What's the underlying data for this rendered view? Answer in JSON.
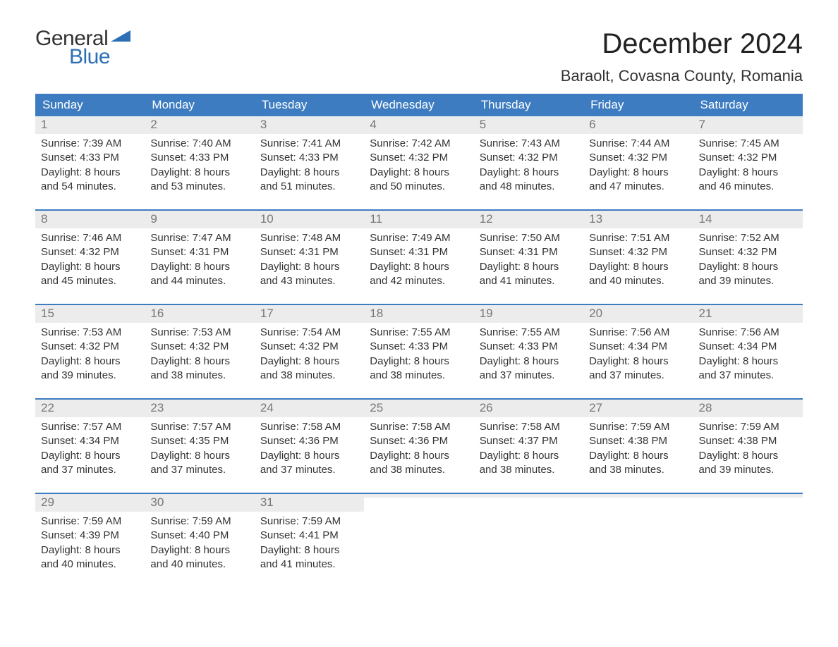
{
  "logo": {
    "text1": "General",
    "text2": "Blue",
    "flag_color": "#2c6fb5",
    "text1_color": "#333333"
  },
  "title": "December 2024",
  "location": "Baraolt, Covasna County, Romania",
  "colors": {
    "header_bg": "#3d7cc0",
    "header_text": "#ffffff",
    "date_band_bg": "#ececec",
    "date_band_text": "#777777",
    "body_text": "#333333",
    "week_border": "#3d7cc0",
    "background": "#ffffff"
  },
  "fonts": {
    "title_size": 40,
    "location_size": 22,
    "header_size": 17,
    "body_size": 15
  },
  "day_labels": [
    "Sunday",
    "Monday",
    "Tuesday",
    "Wednesday",
    "Thursday",
    "Friday",
    "Saturday"
  ],
  "weeks": [
    [
      {
        "date": "1",
        "sunrise": "Sunrise: 7:39 AM",
        "sunset": "Sunset: 4:33 PM",
        "d1": "Daylight: 8 hours",
        "d2": "and 54 minutes."
      },
      {
        "date": "2",
        "sunrise": "Sunrise: 7:40 AM",
        "sunset": "Sunset: 4:33 PM",
        "d1": "Daylight: 8 hours",
        "d2": "and 53 minutes."
      },
      {
        "date": "3",
        "sunrise": "Sunrise: 7:41 AM",
        "sunset": "Sunset: 4:33 PM",
        "d1": "Daylight: 8 hours",
        "d2": "and 51 minutes."
      },
      {
        "date": "4",
        "sunrise": "Sunrise: 7:42 AM",
        "sunset": "Sunset: 4:32 PM",
        "d1": "Daylight: 8 hours",
        "d2": "and 50 minutes."
      },
      {
        "date": "5",
        "sunrise": "Sunrise: 7:43 AM",
        "sunset": "Sunset: 4:32 PM",
        "d1": "Daylight: 8 hours",
        "d2": "and 48 minutes."
      },
      {
        "date": "6",
        "sunrise": "Sunrise: 7:44 AM",
        "sunset": "Sunset: 4:32 PM",
        "d1": "Daylight: 8 hours",
        "d2": "and 47 minutes."
      },
      {
        "date": "7",
        "sunrise": "Sunrise: 7:45 AM",
        "sunset": "Sunset: 4:32 PM",
        "d1": "Daylight: 8 hours",
        "d2": "and 46 minutes."
      }
    ],
    [
      {
        "date": "8",
        "sunrise": "Sunrise: 7:46 AM",
        "sunset": "Sunset: 4:32 PM",
        "d1": "Daylight: 8 hours",
        "d2": "and 45 minutes."
      },
      {
        "date": "9",
        "sunrise": "Sunrise: 7:47 AM",
        "sunset": "Sunset: 4:31 PM",
        "d1": "Daylight: 8 hours",
        "d2": "and 44 minutes."
      },
      {
        "date": "10",
        "sunrise": "Sunrise: 7:48 AM",
        "sunset": "Sunset: 4:31 PM",
        "d1": "Daylight: 8 hours",
        "d2": "and 43 minutes."
      },
      {
        "date": "11",
        "sunrise": "Sunrise: 7:49 AM",
        "sunset": "Sunset: 4:31 PM",
        "d1": "Daylight: 8 hours",
        "d2": "and 42 minutes."
      },
      {
        "date": "12",
        "sunrise": "Sunrise: 7:50 AM",
        "sunset": "Sunset: 4:31 PM",
        "d1": "Daylight: 8 hours",
        "d2": "and 41 minutes."
      },
      {
        "date": "13",
        "sunrise": "Sunrise: 7:51 AM",
        "sunset": "Sunset: 4:32 PM",
        "d1": "Daylight: 8 hours",
        "d2": "and 40 minutes."
      },
      {
        "date": "14",
        "sunrise": "Sunrise: 7:52 AM",
        "sunset": "Sunset: 4:32 PM",
        "d1": "Daylight: 8 hours",
        "d2": "and 39 minutes."
      }
    ],
    [
      {
        "date": "15",
        "sunrise": "Sunrise: 7:53 AM",
        "sunset": "Sunset: 4:32 PM",
        "d1": "Daylight: 8 hours",
        "d2": "and 39 minutes."
      },
      {
        "date": "16",
        "sunrise": "Sunrise: 7:53 AM",
        "sunset": "Sunset: 4:32 PM",
        "d1": "Daylight: 8 hours",
        "d2": "and 38 minutes."
      },
      {
        "date": "17",
        "sunrise": "Sunrise: 7:54 AM",
        "sunset": "Sunset: 4:32 PM",
        "d1": "Daylight: 8 hours",
        "d2": "and 38 minutes."
      },
      {
        "date": "18",
        "sunrise": "Sunrise: 7:55 AM",
        "sunset": "Sunset: 4:33 PM",
        "d1": "Daylight: 8 hours",
        "d2": "and 38 minutes."
      },
      {
        "date": "19",
        "sunrise": "Sunrise: 7:55 AM",
        "sunset": "Sunset: 4:33 PM",
        "d1": "Daylight: 8 hours",
        "d2": "and 37 minutes."
      },
      {
        "date": "20",
        "sunrise": "Sunrise: 7:56 AM",
        "sunset": "Sunset: 4:34 PM",
        "d1": "Daylight: 8 hours",
        "d2": "and 37 minutes."
      },
      {
        "date": "21",
        "sunrise": "Sunrise: 7:56 AM",
        "sunset": "Sunset: 4:34 PM",
        "d1": "Daylight: 8 hours",
        "d2": "and 37 minutes."
      }
    ],
    [
      {
        "date": "22",
        "sunrise": "Sunrise: 7:57 AM",
        "sunset": "Sunset: 4:34 PM",
        "d1": "Daylight: 8 hours",
        "d2": "and 37 minutes."
      },
      {
        "date": "23",
        "sunrise": "Sunrise: 7:57 AM",
        "sunset": "Sunset: 4:35 PM",
        "d1": "Daylight: 8 hours",
        "d2": "and 37 minutes."
      },
      {
        "date": "24",
        "sunrise": "Sunrise: 7:58 AM",
        "sunset": "Sunset: 4:36 PM",
        "d1": "Daylight: 8 hours",
        "d2": "and 37 minutes."
      },
      {
        "date": "25",
        "sunrise": "Sunrise: 7:58 AM",
        "sunset": "Sunset: 4:36 PM",
        "d1": "Daylight: 8 hours",
        "d2": "and 38 minutes."
      },
      {
        "date": "26",
        "sunrise": "Sunrise: 7:58 AM",
        "sunset": "Sunset: 4:37 PM",
        "d1": "Daylight: 8 hours",
        "d2": "and 38 minutes."
      },
      {
        "date": "27",
        "sunrise": "Sunrise: 7:59 AM",
        "sunset": "Sunset: 4:38 PM",
        "d1": "Daylight: 8 hours",
        "d2": "and 38 minutes."
      },
      {
        "date": "28",
        "sunrise": "Sunrise: 7:59 AM",
        "sunset": "Sunset: 4:38 PM",
        "d1": "Daylight: 8 hours",
        "d2": "and 39 minutes."
      }
    ],
    [
      {
        "date": "29",
        "sunrise": "Sunrise: 7:59 AM",
        "sunset": "Sunset: 4:39 PM",
        "d1": "Daylight: 8 hours",
        "d2": "and 40 minutes."
      },
      {
        "date": "30",
        "sunrise": "Sunrise: 7:59 AM",
        "sunset": "Sunset: 4:40 PM",
        "d1": "Daylight: 8 hours",
        "d2": "and 40 minutes."
      },
      {
        "date": "31",
        "sunrise": "Sunrise: 7:59 AM",
        "sunset": "Sunset: 4:41 PM",
        "d1": "Daylight: 8 hours",
        "d2": "and 41 minutes."
      },
      {
        "empty": true,
        "date": " ",
        "sunrise": "",
        "sunset": "",
        "d1": "",
        "d2": ""
      },
      {
        "empty": true,
        "date": " ",
        "sunrise": "",
        "sunset": "",
        "d1": "",
        "d2": ""
      },
      {
        "empty": true,
        "date": " ",
        "sunrise": "",
        "sunset": "",
        "d1": "",
        "d2": ""
      },
      {
        "empty": true,
        "date": " ",
        "sunrise": "",
        "sunset": "",
        "d1": "",
        "d2": ""
      }
    ]
  ]
}
